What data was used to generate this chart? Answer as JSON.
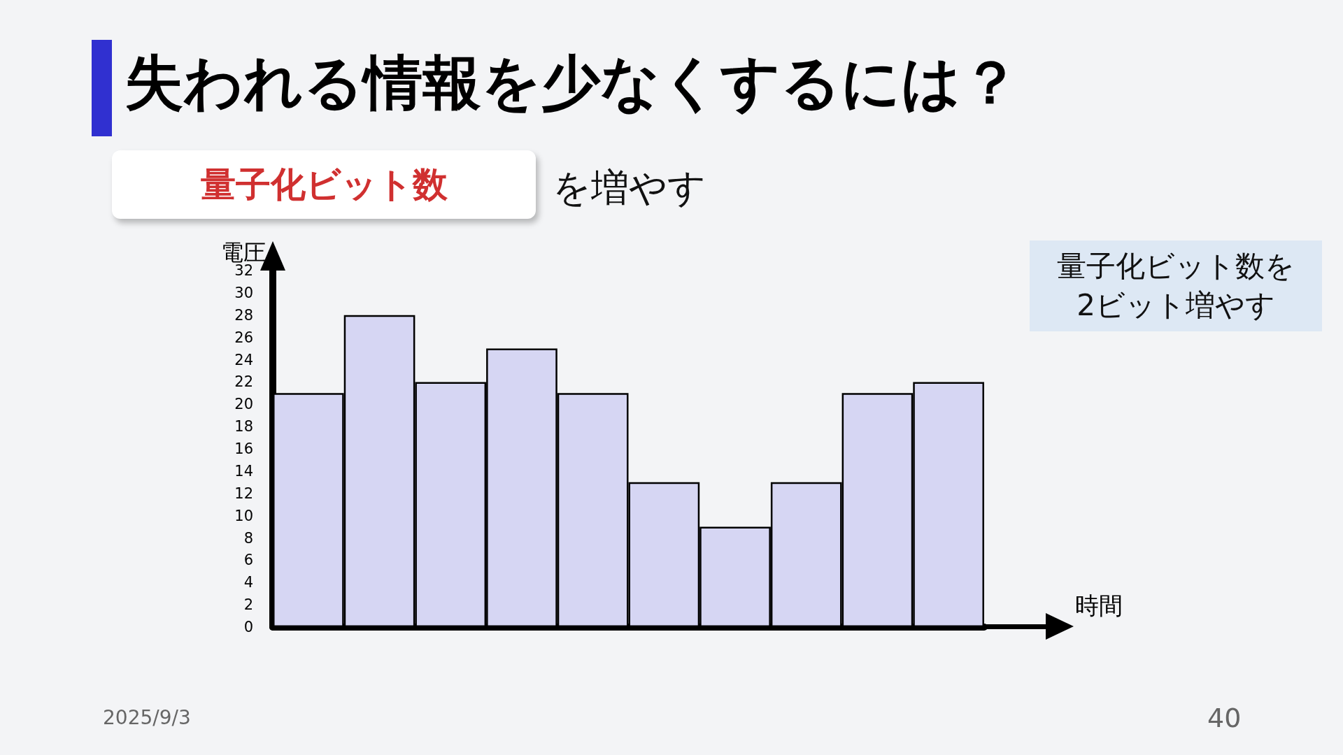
{
  "chart_data": {
    "type": "bar",
    "title": "失われる情報を少なくするには？",
    "subtitle": "量子化ビット数",
    "annotations": [
      "を増やす",
      "量子化ビット数を2ビット増やす",
      "2025/9/3",
      "40"
    ],
    "xlabel": "時間",
    "ylabel": "電圧",
    "categories": [
      null,
      null,
      null,
      null,
      null,
      null,
      null,
      null,
      null,
      null
    ],
    "values": [
      21,
      28,
      22,
      25,
      21,
      13,
      9,
      13,
      21,
      22
    ],
    "color": "#d6d6f3",
    "ylim": [
      0,
      32
    ],
    "yticks": [
      0,
      2,
      4,
      6,
      8,
      10,
      12,
      14,
      16,
      18,
      20,
      22,
      24,
      26,
      28,
      30,
      32
    ]
  }
}
